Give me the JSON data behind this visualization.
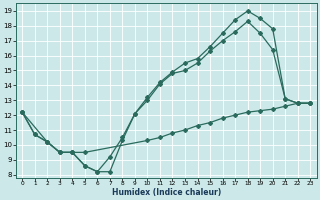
{
  "xlabel": "Humidex (Indice chaleur)",
  "bg_color": "#cde8e8",
  "line_color": "#2a6b5e",
  "xlim": [
    -0.5,
    23.5
  ],
  "ylim": [
    7.8,
    19.5
  ],
  "xticks": [
    0,
    1,
    2,
    3,
    4,
    5,
    6,
    7,
    8,
    9,
    10,
    11,
    12,
    13,
    14,
    15,
    16,
    17,
    18,
    19,
    20,
    21,
    22,
    23
  ],
  "yticks": [
    8,
    9,
    10,
    11,
    12,
    13,
    14,
    15,
    16,
    17,
    18,
    19
  ],
  "line1_x": [
    0,
    1,
    2,
    3,
    4,
    5,
    6,
    7,
    8,
    9,
    10,
    11,
    12,
    13,
    14,
    15,
    16,
    17,
    18,
    19,
    20,
    21,
    22,
    23
  ],
  "line1_y": [
    12.2,
    10.7,
    10.2,
    9.5,
    9.5,
    8.6,
    8.2,
    8.2,
    10.3,
    12.1,
    13.0,
    14.1,
    14.8,
    15.0,
    15.5,
    16.3,
    17.0,
    17.6,
    18.3,
    17.5,
    16.4,
    13.1,
    12.8,
    12.8
  ],
  "line2_x": [
    0,
    1,
    2,
    3,
    4,
    5,
    6,
    7,
    8,
    9,
    10,
    11,
    12,
    13,
    14,
    15,
    16,
    17,
    18,
    19,
    20,
    21,
    22,
    23
  ],
  "line2_y": [
    12.2,
    10.7,
    10.2,
    9.5,
    9.5,
    8.6,
    8.2,
    9.2,
    10.5,
    12.1,
    13.2,
    14.2,
    14.9,
    15.5,
    15.8,
    16.6,
    17.5,
    18.4,
    19.0,
    18.5,
    17.8,
    13.1,
    12.8,
    12.8
  ],
  "line3_x": [
    0,
    2,
    3,
    4,
    5,
    10,
    11,
    12,
    13,
    14,
    15,
    16,
    17,
    18,
    19,
    20,
    21,
    22,
    23
  ],
  "line3_y": [
    12.2,
    10.2,
    9.5,
    9.5,
    9.5,
    10.3,
    10.5,
    10.8,
    11.0,
    11.3,
    11.5,
    11.8,
    12.0,
    12.2,
    12.3,
    12.4,
    12.6,
    12.8,
    12.8
  ]
}
